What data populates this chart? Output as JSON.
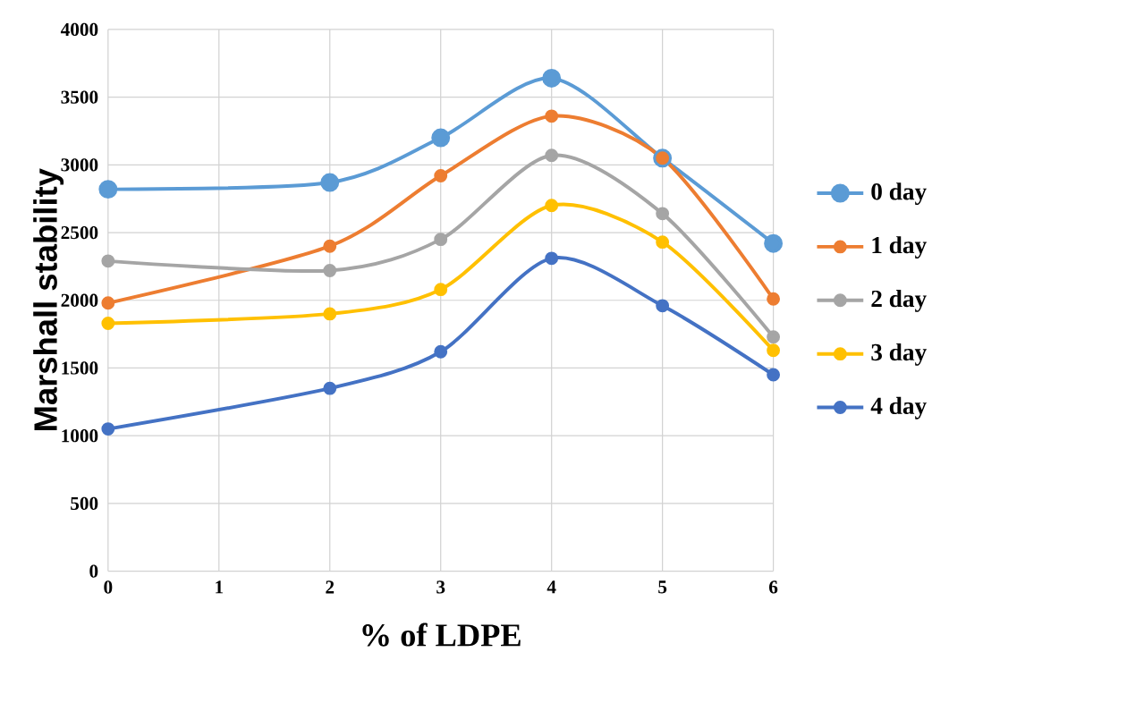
{
  "chart_data": {
    "type": "line",
    "xlabel": "% of LDPE",
    "ylabel": "Marshall stability",
    "x": [
      0,
      2,
      3,
      4,
      5,
      6
    ],
    "series": [
      {
        "name": "0 day",
        "color": "#5b9bd5",
        "values": [
          2820,
          2870,
          3200,
          3640,
          3050,
          2420
        ]
      },
      {
        "name": "1 day",
        "color": "#ed7d31",
        "values": [
          1980,
          2400,
          2920,
          3360,
          3050,
          2010
        ]
      },
      {
        "name": "2 day",
        "color": "#a5a5a5",
        "values": [
          2290,
          2220,
          2450,
          3070,
          2640,
          1730
        ]
      },
      {
        "name": "3 day",
        "color": "#ffc000",
        "values": [
          1830,
          1900,
          2080,
          2700,
          2430,
          1630
        ]
      },
      {
        "name": "4 day",
        "color": "#4472c4",
        "values": [
          1050,
          1350,
          1620,
          2310,
          1960,
          1450
        ]
      }
    ],
    "xlim": [
      0,
      6
    ],
    "xticks": [
      0,
      1,
      2,
      3,
      4,
      5,
      6
    ],
    "ylim": [
      0,
      4000
    ],
    "yticks": [
      0,
      500,
      1000,
      1500,
      2000,
      2500,
      3000,
      3500,
      4000
    ],
    "grid": true,
    "legend": "right",
    "marker": "circle",
    "line_style": "solid"
  }
}
